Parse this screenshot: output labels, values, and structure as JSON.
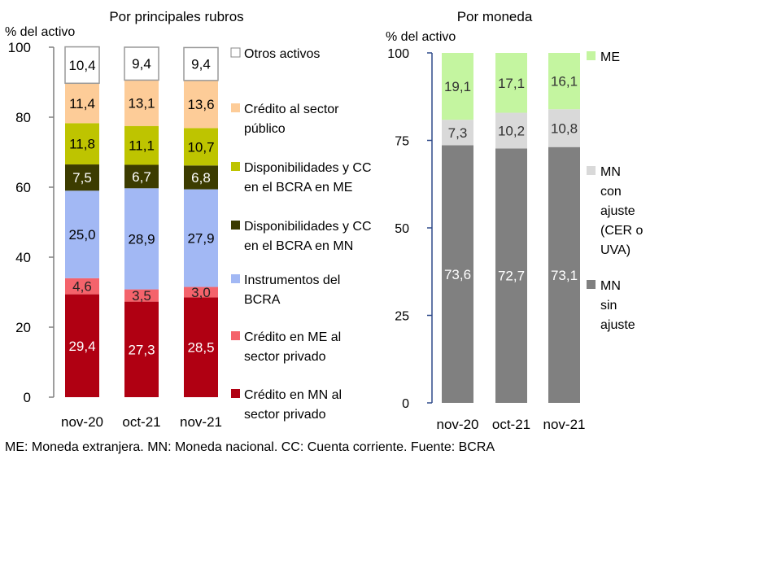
{
  "chart_data": [
    {
      "type": "bar",
      "stacked": true,
      "title": "Por principales rubros",
      "ylabel": "% del activo",
      "ylim": [
        0,
        100
      ],
      "yticks": [
        0,
        20,
        40,
        60,
        80,
        100
      ],
      "categories": [
        "nov-20",
        "oct-21",
        "nov-21"
      ],
      "series": [
        {
          "name": "Crédito en MN al sector privado",
          "legend_lines": [
            "Crédito en MN al",
            "sector privado"
          ],
          "color": "#b00012",
          "label_color": "#ffffff",
          "values": [
            29.4,
            27.3,
            28.5
          ],
          "labels": [
            "29,4",
            "27,3",
            "28,5"
          ]
        },
        {
          "name": "Crédito en ME al sector privado",
          "legend_lines": [
            "Crédito en ME al",
            "sector privado"
          ],
          "color": "#f4636b",
          "label_color": "#222222",
          "values": [
            4.6,
            3.5,
            3.0
          ],
          "labels": [
            "4,6",
            "3,5",
            "3,0"
          ]
        },
        {
          "name": "Instrumentos del BCRA",
          "legend_lines": [
            "Instrumentos del",
            "BCRA"
          ],
          "color": "#a2b8f4",
          "label_color": "#000000",
          "values": [
            25.0,
            28.9,
            27.9
          ],
          "labels": [
            "25,0",
            "28,9",
            "27,9"
          ]
        },
        {
          "name": "Disponibilidades y CC en el BCRA en MN",
          "legend_lines": [
            "Disponibilidades y CC",
            "en el BCRA en MN"
          ],
          "color": "#3c3c00",
          "label_color": "#ffffff",
          "values": [
            7.5,
            6.7,
            6.8
          ],
          "labels": [
            "7,5",
            "6,7",
            "6,8"
          ]
        },
        {
          "name": "Disponibilidades y CC en el BCRA en ME",
          "legend_lines": [
            "Disponibilidades y CC",
            "en el BCRA en ME"
          ],
          "color": "#bec400",
          "label_color": "#000000",
          "values": [
            11.8,
            11.1,
            10.7
          ],
          "labels": [
            "11,8",
            "11,1",
            "10,7"
          ]
        },
        {
          "name": "Crédito al sector público",
          "legend_lines": [
            "Crédito al sector",
            "público"
          ],
          "color": "#fdcc98",
          "label_color": "#000000",
          "values": [
            11.4,
            13.1,
            13.6
          ],
          "labels": [
            "11,4",
            "13,1",
            "13,6"
          ]
        },
        {
          "name": "Otros activos",
          "legend_lines": [
            "Otros activos"
          ],
          "color": "#ffffff",
          "label_color": "#000000",
          "values": [
            10.4,
            9.4,
            9.4
          ],
          "labels": [
            "10,4",
            "9,4",
            "9,4"
          ]
        }
      ]
    },
    {
      "type": "bar",
      "stacked": true,
      "title": "Por moneda",
      "ylabel": "% del activo",
      "ylim": [
        0,
        100
      ],
      "yticks": [
        0,
        25,
        50,
        75,
        100
      ],
      "categories": [
        "nov-20",
        "oct-21",
        "nov-21"
      ],
      "series": [
        {
          "name": "MN sin ajuste",
          "legend_lines": [
            "MN",
            "sin",
            "ajuste"
          ],
          "color": "#808080",
          "label_color": "#ffffff",
          "values": [
            73.6,
            72.7,
            73.1
          ],
          "labels": [
            "73,6",
            "72,7",
            "73,1"
          ]
        },
        {
          "name": "MN con ajuste (CER o UVA)",
          "legend_lines": [
            "MN",
            "con",
            "ajuste",
            "(CER o",
            "UVA)"
          ],
          "color": "#d9d9d9",
          "label_color": "#333333",
          "values": [
            7.3,
            10.2,
            10.8
          ],
          "labels": [
            "7,3",
            "10,2",
            "10,8"
          ]
        },
        {
          "name": "ME",
          "legend_lines": [
            "ME"
          ],
          "color": "#c4f5a0",
          "label_color": "#333333",
          "values": [
            19.1,
            17.1,
            16.1
          ],
          "labels": [
            "19,1",
            "17,1",
            "16,1"
          ]
        }
      ]
    }
  ],
  "footnote": "ME: Moneda extranjera. MN: Moneda nacional. CC: Cuenta corriente. Fuente: BCRA"
}
